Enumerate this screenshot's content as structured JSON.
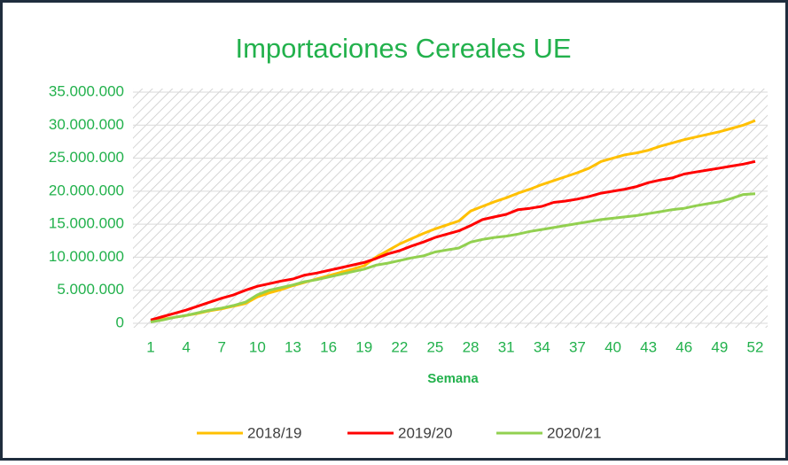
{
  "chart_data": {
    "type": "line",
    "title": "Importaciones Cereales UE",
    "x_label": "Semana",
    "categories": [
      1,
      null,
      null,
      4,
      null,
      null,
      7,
      null,
      null,
      10,
      null,
      null,
      13,
      null,
      null,
      16,
      null,
      null,
      19,
      null,
      null,
      22,
      null,
      null,
      25,
      null,
      null,
      28,
      null,
      null,
      31,
      null,
      null,
      34,
      null,
      null,
      37,
      null,
      null,
      40,
      null,
      null,
      43,
      null,
      null,
      46,
      null,
      null,
      49,
      null,
      null,
      52
    ],
    "series": [
      {
        "name": "2018/19",
        "color": "#ffc000",
        "values": [
          300000,
          600000,
          900000,
          1200000,
          1500000,
          1900000,
          2200000,
          2600000,
          3000000,
          4000000,
          4600000,
          5100000,
          5700000,
          6200000,
          6700000,
          7200000,
          7700000,
          8200000,
          8700000,
          10000000,
          11000000,
          12000000,
          12800000,
          13600000,
          14300000,
          14900000,
          15500000,
          17000000,
          17700000,
          18400000,
          19000000,
          19700000,
          20300000,
          21000000,
          21600000,
          22200000,
          22800000,
          23500000,
          24500000,
          25000000,
          25500000,
          25800000,
          26200000,
          26800000,
          27300000,
          27800000,
          28200000,
          28600000,
          29000000,
          29500000,
          30000000,
          30700000
        ]
      },
      {
        "name": "2019/20",
        "color": "#ff0000",
        "values": [
          500000,
          1000000,
          1500000,
          2000000,
          2600000,
          3200000,
          3800000,
          4300000,
          5000000,
          5600000,
          6000000,
          6400000,
          6700000,
          7300000,
          7600000,
          8000000,
          8400000,
          8800000,
          9200000,
          9800000,
          10500000,
          11000000,
          11700000,
          12300000,
          13000000,
          13500000,
          14000000,
          14800000,
          15700000,
          16100000,
          16500000,
          17200000,
          17400000,
          17700000,
          18300000,
          18500000,
          18800000,
          19200000,
          19700000,
          20000000,
          20300000,
          20700000,
          21300000,
          21700000,
          22000000,
          22600000,
          22900000,
          23200000,
          23500000,
          23800000,
          24100000,
          24500000
        ]
      },
      {
        "name": "2020/21",
        "color": "#92d050",
        "values": [
          200000,
          500000,
          900000,
          1200000,
          1600000,
          2000000,
          2300000,
          2700000,
          3200000,
          4300000,
          5000000,
          5400000,
          5800000,
          6300000,
          6600000,
          7000000,
          7400000,
          7800000,
          8200000,
          8800000,
          9100000,
          9500000,
          9900000,
          10200000,
          10800000,
          11100000,
          11400000,
          12300000,
          12700000,
          13000000,
          13200000,
          13500000,
          13900000,
          14200000,
          14500000,
          14800000,
          15100000,
          15400000,
          15700000,
          15900000,
          16100000,
          16300000,
          16600000,
          16900000,
          17200000,
          17400000,
          17800000,
          18100000,
          18400000,
          18900000,
          19500000,
          19600000
        ]
      }
    ],
    "ylim": [
      0,
      35000000
    ],
    "yticks": [
      0,
      {
        "value": 5000000,
        "label": "5.000.000"
      },
      {
        "value": 10000000,
        "label": "10.000.000"
      },
      {
        "value": 15000000,
        "label": "15.000.000"
      },
      {
        "value": 20000000,
        "label": "20.000.000"
      },
      {
        "value": 25000000,
        "label": "25.000.000"
      },
      {
        "value": 30000000,
        "label": "30.000.000"
      },
      {
        "value": 35000000,
        "label": "35.000.000"
      }
    ],
    "grid": true,
    "legend": "bottom"
  }
}
